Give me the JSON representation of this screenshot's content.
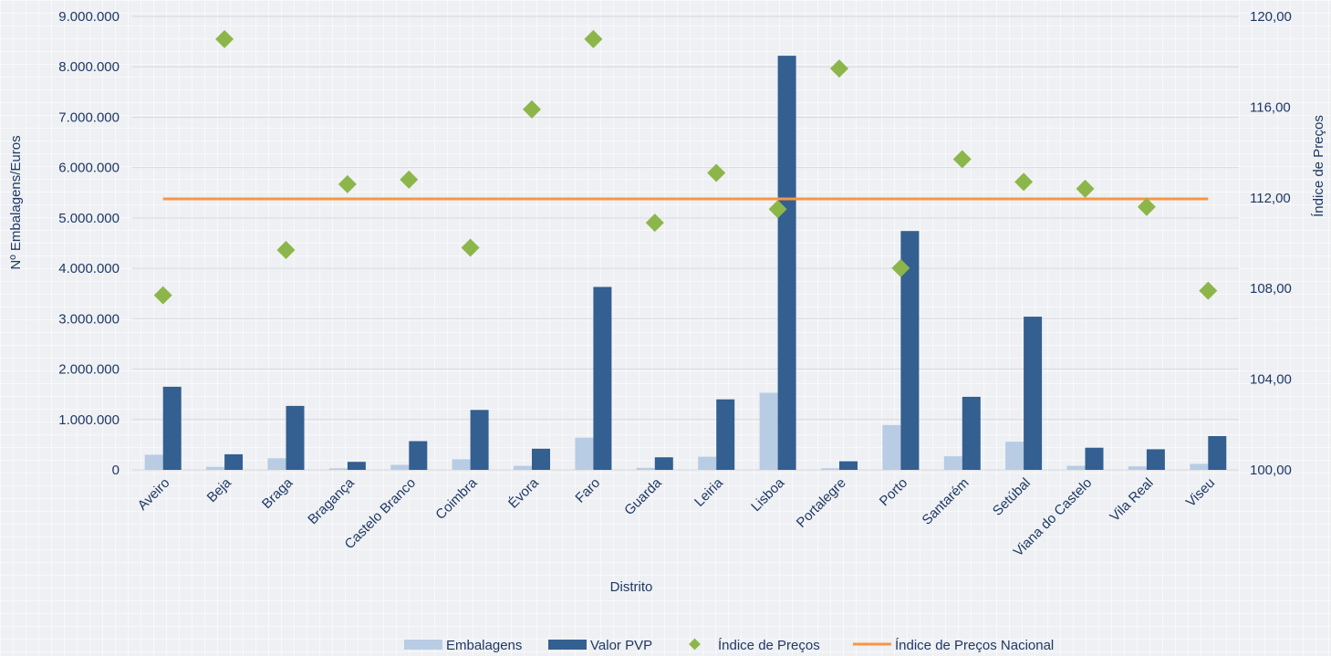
{
  "chart_data": {
    "type": "bar",
    "categories": [
      "Aveiro",
      "Beja",
      "Braga",
      "Bragança",
      "Castelo Branco",
      "Coimbra",
      "Évora",
      "Faro",
      "Guarda",
      "Leiria",
      "Lisboa",
      "Portalegre",
      "Porto",
      "Santarém",
      "Setúbal",
      "Viana do Castelo",
      "Vila Real",
      "Viseu"
    ],
    "series": [
      {
        "name": "Embalagens",
        "kind": "bar",
        "axis": "left",
        "color": "#b8cce4",
        "values": [
          300000,
          60000,
          230000,
          30000,
          100000,
          210000,
          80000,
          640000,
          40000,
          260000,
          1530000,
          30000,
          890000,
          270000,
          560000,
          80000,
          70000,
          120000
        ]
      },
      {
        "name": "Valor PVP",
        "kind": "bar",
        "axis": "left",
        "color": "#335f91",
        "values": [
          1650000,
          310000,
          1270000,
          160000,
          570000,
          1190000,
          420000,
          3630000,
          250000,
          1400000,
          8220000,
          170000,
          4740000,
          1450000,
          3040000,
          440000,
          410000,
          670000
        ]
      },
      {
        "name": "Índice de Preços",
        "kind": "scatter",
        "axis": "right",
        "color": "#8db64a",
        "values": [
          107.7,
          119.0,
          109.7,
          112.6,
          112.8,
          109.8,
          115.9,
          119.0,
          110.9,
          113.1,
          111.5,
          117.7,
          108.9,
          113.7,
          112.7,
          112.4,
          111.6,
          107.9
        ]
      },
      {
        "name": "Índice de Preços Nacional",
        "kind": "line",
        "axis": "right",
        "color": "#f79646",
        "values": [
          111.95,
          111.95,
          111.95,
          111.95,
          111.95,
          111.95,
          111.95,
          111.95,
          111.95,
          111.95,
          111.95,
          111.95,
          111.95,
          111.95,
          111.95,
          111.95,
          111.95,
          111.95
        ]
      }
    ],
    "xlabel": "Distrito",
    "ylabel": "Nº Embalagens/Euros",
    "y2label": "Índice de Preços",
    "ylim": [
      0,
      9000000
    ],
    "y2lim": [
      100,
      120
    ],
    "yticks": [
      "0",
      "1.000.000",
      "2.000.000",
      "3.000.000",
      "4.000.000",
      "5.000.000",
      "6.000.000",
      "7.000.000",
      "8.000.000",
      "9.000.000"
    ],
    "y2ticks": [
      "100,00",
      "104,00",
      "108,00",
      "112,00",
      "116,00",
      "120,00"
    ],
    "grid": true,
    "legend_position": "bottom"
  }
}
